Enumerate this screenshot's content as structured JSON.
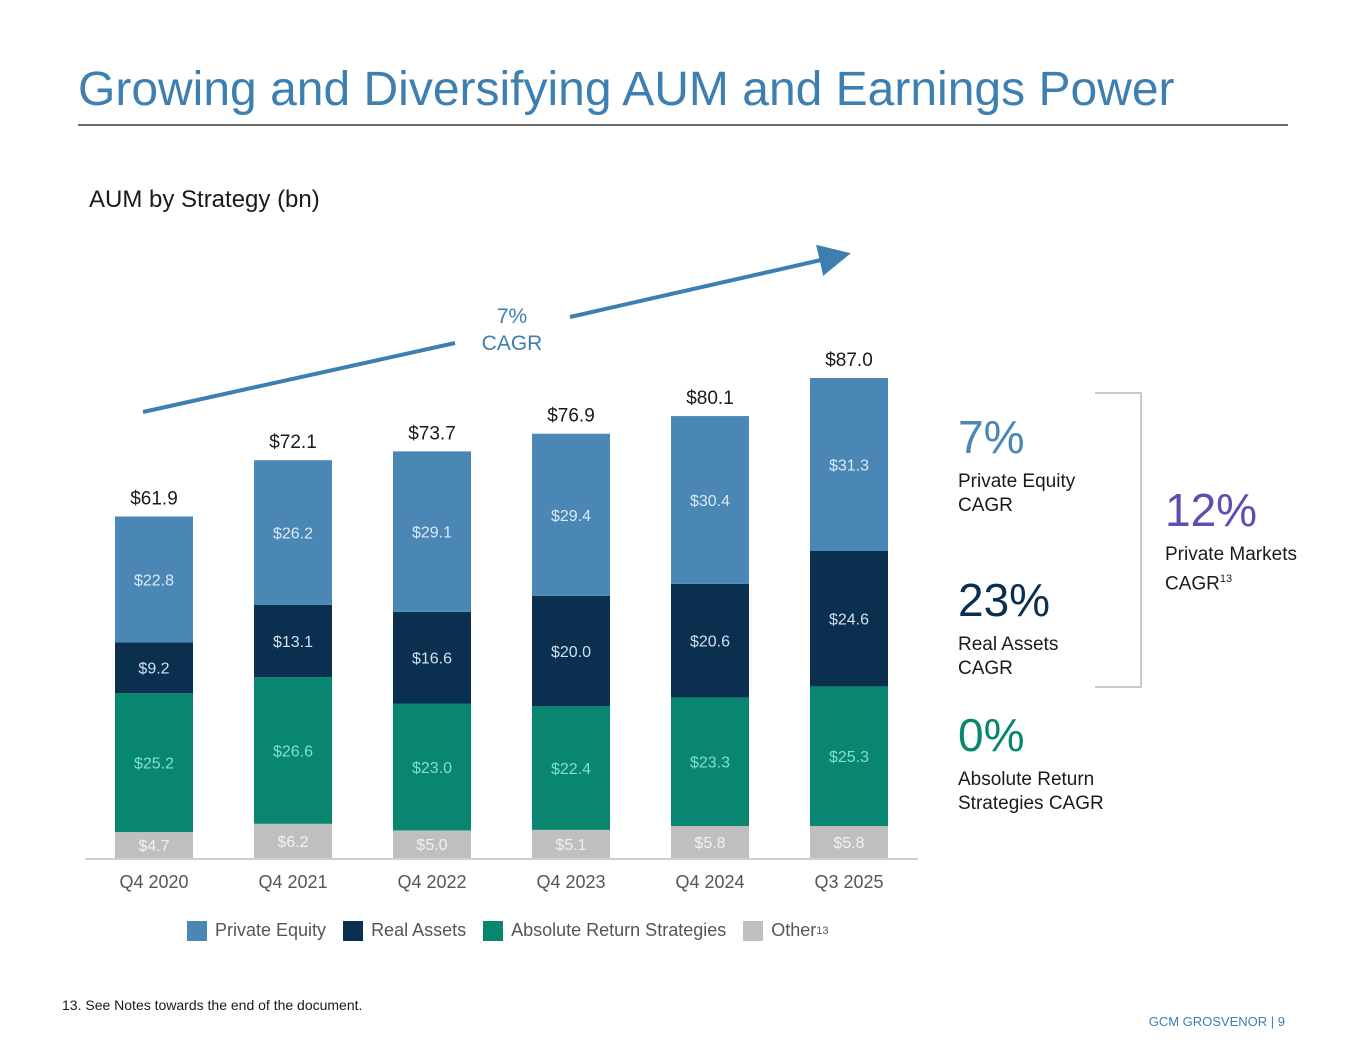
{
  "title": "Growing and Diversifying AUM and Earnings Power",
  "subtitle": "AUM by Strategy (bn)",
  "cagr_arrow": {
    "pct": "7%",
    "label": "CAGR"
  },
  "chart_data": {
    "type": "bar",
    "stacked": true,
    "title": "AUM by Strategy (bn)",
    "categories": [
      "Q4 2020",
      "Q4 2021",
      "Q4 2022",
      "Q4 2023",
      "Q4 2024",
      "Q3 2025"
    ],
    "totals": [
      61.9,
      72.1,
      73.7,
      76.9,
      80.1,
      87.0
    ],
    "total_labels": [
      "$61.9",
      "$72.1",
      "$73.7",
      "$76.9",
      "$80.1",
      "$87.0"
    ],
    "series": [
      {
        "name": "Other",
        "color": "#bfbfbf",
        "values": [
          4.7,
          6.2,
          5.0,
          5.1,
          5.8,
          5.8
        ]
      },
      {
        "name": "Absolute Return Strategies",
        "color": "#08866f",
        "values": [
          25.2,
          26.6,
          23.0,
          22.4,
          23.3,
          25.3
        ]
      },
      {
        "name": "Real Assets",
        "color": "#0b2f4f",
        "values": [
          9.2,
          13.1,
          16.6,
          20.0,
          20.6,
          24.6
        ]
      },
      {
        "name": "Private Equity",
        "color": "#4a87b5",
        "values": [
          22.8,
          26.2,
          29.1,
          29.4,
          30.4,
          31.3
        ]
      }
    ],
    "ylim": [
      0,
      87
    ],
    "grid": false,
    "legend": "bottom"
  },
  "legend": [
    {
      "label": "Private Equity",
      "color": "#4a87b5"
    },
    {
      "label": "Real Assets",
      "color": "#0b2f4f"
    },
    {
      "label": "Absolute Return Strategies",
      "color": "#08866f"
    },
    {
      "label": "Other",
      "color": "#bfbfbf",
      "sup": "13"
    }
  ],
  "stats": {
    "pe": {
      "value": "7%",
      "label": "Private Equity CAGR",
      "color": "#4a87b5"
    },
    "ra": {
      "value": "23%",
      "label": "Real Assets CAGR",
      "color": "#0b2f4f"
    },
    "ars": {
      "value": "0%",
      "label": "Absolute Return Strategies CAGR",
      "color": "#08866f"
    },
    "pm": {
      "value": "12%",
      "label": "Private Markets CAGR",
      "sup": "13",
      "color": "#5b4fb0"
    }
  },
  "footnote": "13. See Notes towards the end of the document.",
  "footer": "GCM GROSVENOR | 9"
}
